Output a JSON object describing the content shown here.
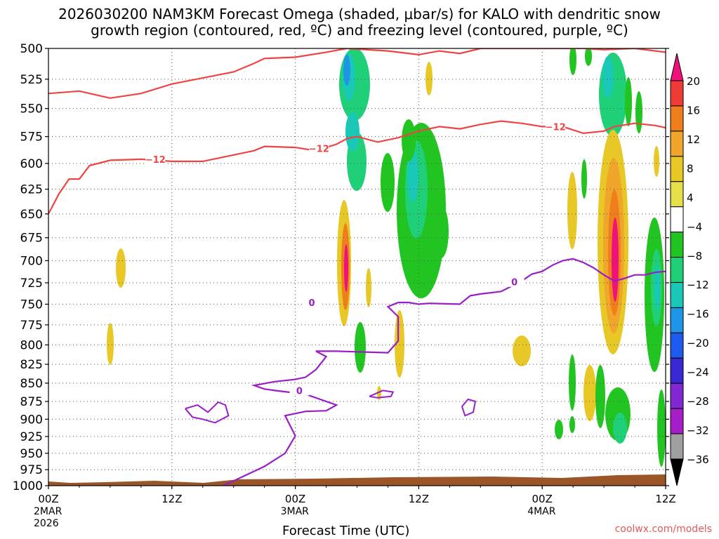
{
  "chart_data": {
    "type": "heatmap",
    "title_line1": "2026030200 NAM3KM Forecast Omega (shaded, μbar/s) for KALO with dendritic snow",
    "title_line2": "growth region (contoured, red, ºC) and freezing level (contoured, purple, ºC)",
    "xlabel": "Forecast Time (UTC)",
    "ylabel": "",
    "x_ticks": [
      {
        "hour": 0,
        "label": "00Z",
        "sub1": "2MAR",
        "sub2": "2026"
      },
      {
        "hour": 12,
        "label": "12Z",
        "sub1": "",
        "sub2": ""
      },
      {
        "hour": 24,
        "label": "00Z",
        "sub1": "3MAR",
        "sub2": ""
      },
      {
        "hour": 36,
        "label": "12Z",
        "sub1": "",
        "sub2": ""
      },
      {
        "hour": 48,
        "label": "00Z",
        "sub1": "4MAR",
        "sub2": ""
      },
      {
        "hour": 60,
        "label": "12Z",
        "sub1": "",
        "sub2": ""
      }
    ],
    "xlim": [
      0,
      60
    ],
    "y_ticks": [
      500,
      525,
      550,
      575,
      600,
      625,
      650,
      675,
      700,
      725,
      750,
      775,
      800,
      825,
      850,
      875,
      900,
      925,
      950,
      975,
      1000
    ],
    "ylim": [
      500,
      1000
    ],
    "y_scale": "log-pressure",
    "grid": true,
    "colorbar": {
      "labels": [
        "20",
        "16",
        "12",
        "8",
        "4",
        "−4",
        "−8",
        "−12",
        "−16",
        "−20",
        "−24",
        "−28",
        "−32",
        "−36"
      ],
      "colors": [
        "#f0127a",
        "#ef3b36",
        "#ef7f1d",
        "#f0a52b",
        "#e8c826",
        "#e6e04a",
        "#ffffff",
        "#22c422",
        "#1fd078",
        "#19c8b6",
        "#1e95e6",
        "#1e5aee",
        "#3a28d2",
        "#8228d2",
        "#a51ec8",
        "#a0a0a0",
        "#000000"
      ]
    },
    "contour_labels": {
      "dgz": "−12",
      "freezing": "0"
    },
    "dgz_upper": [
      [
        0,
        537
      ],
      [
        3,
        535
      ],
      [
        6,
        541
      ],
      [
        9,
        537
      ],
      [
        12,
        529
      ],
      [
        15,
        524
      ],
      [
        18,
        519
      ],
      [
        20,
        512
      ],
      [
        21,
        508
      ],
      [
        24,
        507
      ],
      [
        27,
        503
      ],
      [
        29,
        500
      ],
      [
        33,
        502
      ],
      [
        36,
        505
      ],
      [
        38,
        502
      ],
      [
        40,
        504
      ],
      [
        42,
        500
      ],
      [
        49,
        500
      ],
      [
        52,
        500
      ],
      [
        54,
        501
      ],
      [
        57,
        500
      ],
      [
        60,
        503
      ]
    ],
    "dgz_lower": [
      [
        0,
        650
      ],
      [
        1,
        630
      ],
      [
        2,
        615
      ],
      [
        3,
        615
      ],
      [
        4,
        602
      ],
      [
        6,
        597
      ],
      [
        9,
        596
      ],
      [
        12,
        598
      ],
      [
        15,
        598
      ],
      [
        18,
        592
      ],
      [
        20,
        588
      ],
      [
        21,
        584
      ],
      [
        24,
        585
      ],
      [
        26,
        588
      ],
      [
        28,
        582
      ],
      [
        29,
        577
      ],
      [
        30,
        575
      ],
      [
        32,
        580
      ],
      [
        34,
        576
      ],
      [
        36,
        570
      ],
      [
        38,
        566
      ],
      [
        40,
        568
      ],
      [
        42,
        564
      ],
      [
        44,
        561
      ],
      [
        46,
        563
      ],
      [
        48,
        566
      ],
      [
        50,
        566
      ],
      [
        52,
        572
      ],
      [
        54,
        570
      ],
      [
        55,
        566
      ],
      [
        57,
        563
      ],
      [
        59,
        565
      ],
      [
        60,
        567
      ]
    ],
    "freezing_level": [
      [
        17,
        1000
      ],
      [
        19,
        985
      ],
      [
        21,
        970
      ],
      [
        23,
        950
      ],
      [
        24,
        924
      ],
      [
        23,
        895
      ],
      [
        25,
        889
      ],
      [
        27,
        888
      ],
      [
        28,
        880
      ],
      [
        25,
        865
      ],
      [
        22,
        860
      ],
      [
        21,
        858
      ],
      [
        20,
        853
      ],
      [
        22,
        848
      ],
      [
        24,
        845
      ],
      [
        25,
        842
      ],
      [
        26,
        832
      ],
      [
        27,
        815
      ],
      [
        26,
        808
      ],
      [
        28,
        808
      ],
      [
        33,
        810
      ],
      [
        34,
        795
      ],
      [
        34,
        765
      ],
      [
        33,
        753
      ],
      [
        34,
        748
      ],
      [
        35,
        748
      ],
      [
        36,
        750
      ],
      [
        37,
        749
      ],
      [
        40,
        750
      ],
      [
        41,
        740
      ],
      [
        42,
        738
      ],
      [
        44,
        735
      ],
      [
        46,
        723
      ],
      [
        47,
        715
      ],
      [
        48,
        712
      ],
      [
        49,
        705
      ],
      [
        50,
        700
      ],
      [
        51,
        698
      ],
      [
        52,
        702
      ],
      [
        53,
        708
      ],
      [
        54,
        716
      ],
      [
        55,
        723
      ],
      [
        56,
        720
      ],
      [
        57,
        716
      ],
      [
        58,
        716
      ],
      [
        59,
        713
      ],
      [
        60,
        712
      ]
    ],
    "uplift_max": "20",
    "subsidence_max": "16"
  },
  "watermark": "coolwx.com/models",
  "colors": {
    "dgz_contour": "#ee4444",
    "freezing_contour": "#9a1ec8",
    "ground": "#9b5527",
    "grid": "#555555"
  }
}
